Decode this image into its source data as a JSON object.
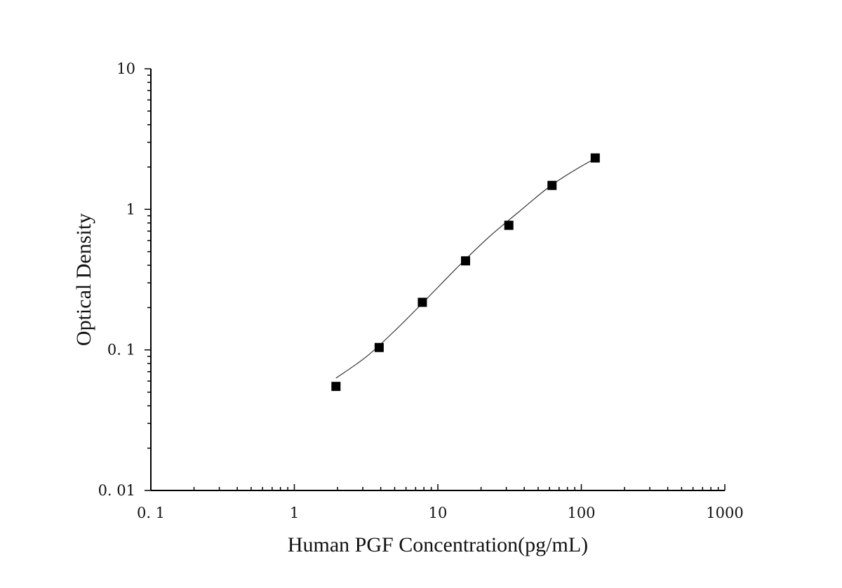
{
  "chart_data": {
    "type": "scatter",
    "title": "",
    "xlabel": "Human PGF Concentration(pg/mL)",
    "ylabel": "Optical Density",
    "x_scale": "log",
    "y_scale": "log",
    "xlim": [
      0.1,
      1000
    ],
    "ylim": [
      0.01,
      10
    ],
    "x_ticks": [
      0.1,
      1,
      10,
      100,
      1000
    ],
    "y_ticks": [
      0.01,
      0.1,
      1,
      10
    ],
    "x_tick_labels": [
      "0. 1",
      "1",
      "10",
      "100",
      "1000"
    ],
    "y_tick_labels": [
      "0. 01",
      "0. 1",
      "1",
      "10"
    ],
    "grid": false,
    "legend": "none",
    "series": [
      {
        "type": "scatter",
        "marker": "square",
        "color": "#000000",
        "x": [
          1.95,
          3.9,
          7.8,
          15.6,
          31.25,
          62.5,
          125
        ],
        "y": [
          0.055,
          0.104,
          0.218,
          0.43,
          0.77,
          1.48,
          2.32
        ]
      },
      {
        "type": "line",
        "color": "#333333",
        "x": [
          1.95,
          3.2,
          5.2,
          8.5,
          13.8,
          22.5,
          36.7,
          60,
          90,
          125
        ],
        "y": [
          0.063,
          0.09,
          0.142,
          0.235,
          0.39,
          0.63,
          0.96,
          1.45,
          1.9,
          2.3
        ]
      }
    ]
  }
}
